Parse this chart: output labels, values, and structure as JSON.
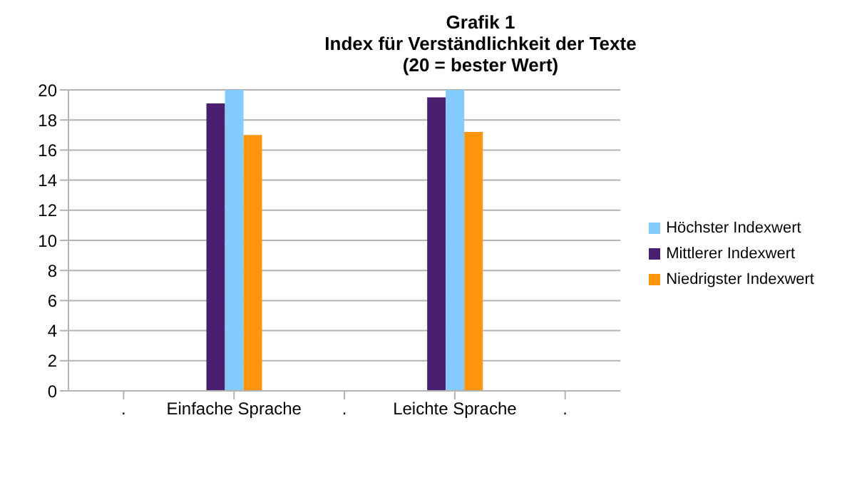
{
  "chart_data": {
    "type": "bar",
    "title": "Grafik 1\nIndex für Verständlichkeit der Texte\n(20 = bester Wert)",
    "categories": [
      ".",
      "Einfache Sprache",
      ".",
      "Leichte Sprache",
      "."
    ],
    "series": [
      {
        "name": "Mittlerer Indexwert",
        "color": "#4b1f6f",
        "values": [
          null,
          19.1,
          null,
          19.5,
          null
        ]
      },
      {
        "name": "Höchster Indexwert",
        "color": "#83caff",
        "values": [
          null,
          20,
          null,
          20,
          null
        ]
      },
      {
        "name": "Niedrigster Indexwert",
        "color": "#ff950e",
        "values": [
          null,
          17.0,
          null,
          17.2,
          null
        ]
      }
    ],
    "ylim": [
      0,
      20
    ],
    "yticks": [
      0,
      2,
      4,
      6,
      8,
      10,
      12,
      14,
      16,
      18,
      20
    ],
    "grid": "y",
    "legend": "right"
  }
}
